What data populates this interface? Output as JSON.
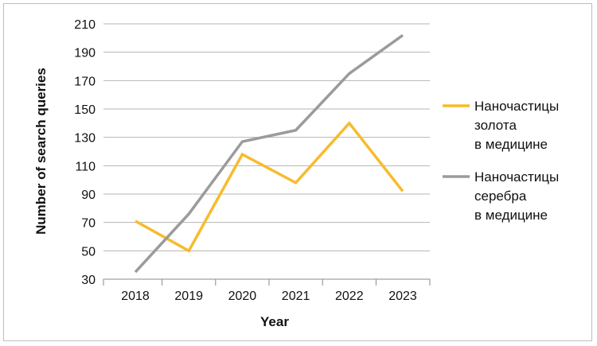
{
  "chart_data": {
    "type": "line",
    "title": "",
    "xlabel": "Year",
    "ylabel": "Number of search queries",
    "categories": [
      "2018",
      "2019",
      "2020",
      "2021",
      "2022",
      "2023"
    ],
    "ylim": [
      30,
      210
    ],
    "yticks": [
      30,
      50,
      70,
      90,
      110,
      130,
      150,
      170,
      190,
      210
    ],
    "grid": "horizontal",
    "legend_position": "right",
    "series": [
      {
        "name_lines": [
          "Наночастицы",
          "золота",
          "в медицине"
        ],
        "color": "#F7BB2E",
        "values": [
          71,
          50,
          118,
          98,
          140,
          92
        ]
      },
      {
        "name_lines": [
          "Наночастицы",
          "серебра",
          "в медицине"
        ],
        "color": "#9B9B9B",
        "values": [
          35,
          76,
          127,
          135,
          175,
          202
        ]
      }
    ]
  }
}
